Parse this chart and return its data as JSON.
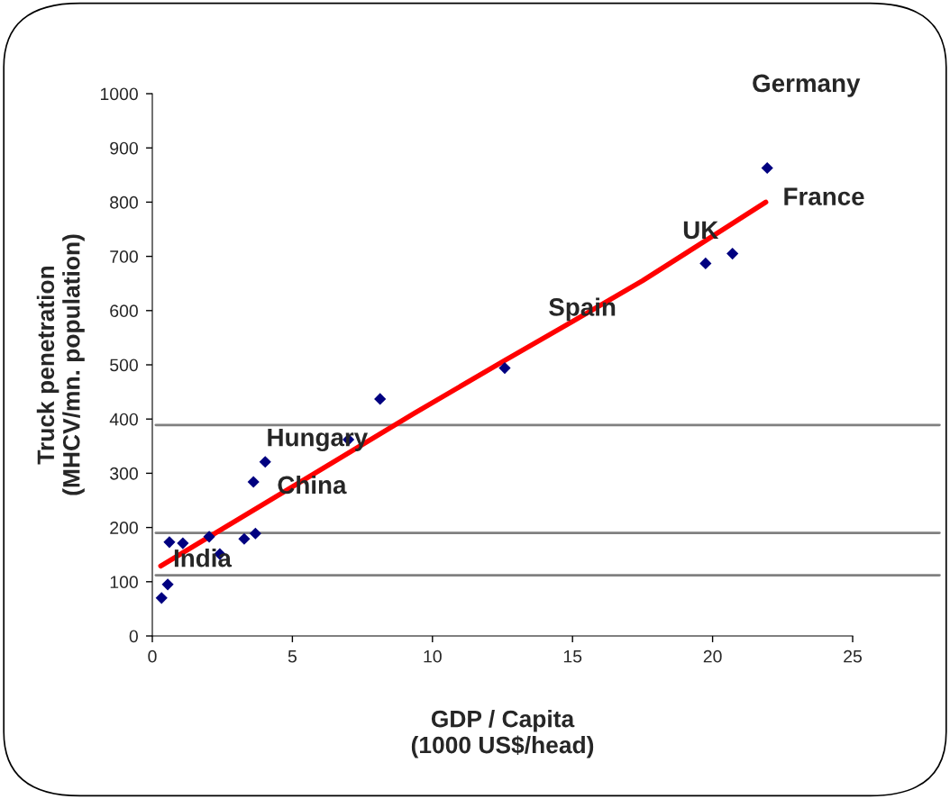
{
  "chart_data": {
    "type": "scatter",
    "xlabel": "GDP / Capita\n(1000 US$/head)",
    "ylabel": "Truck penetration\n(MHCV/mn. population)",
    "xlim": [
      0,
      25
    ],
    "xticks": [
      0,
      5,
      10,
      15,
      20,
      25
    ],
    "ylim": [
      0,
      1000
    ],
    "yticks": [
      0,
      100,
      200,
      300,
      400,
      500,
      600,
      700,
      800,
      900,
      1000
    ],
    "grid": false,
    "legend": false,
    "series": [
      {
        "color": "#000080",
        "marker": "diamond",
        "x": [
          0.33,
          0.55,
          0.61,
          1.09,
          2.03,
          2.41,
          3.28,
          3.68,
          3.61,
          4.03,
          7.0,
          8.13,
          12.58,
          19.75,
          20.71,
          21.95
        ],
        "values": [
          70,
          95,
          173,
          171,
          183,
          151,
          179,
          189,
          284,
          321,
          362,
          437,
          494,
          687,
          705,
          863
        ]
      },
      {
        "type": "line",
        "color": "#ff0000",
        "marker": "none",
        "line_style": "solid",
        "x": [
          0.3,
          5,
          9.36,
          12.58,
          15,
          17.5,
          19.75,
          21.9
        ],
        "values": [
          129,
          275,
          411,
          508,
          580,
          655,
          729,
          800
        ]
      }
    ],
    "ref_lines": [
      {
        "axis": "y",
        "value": 389,
        "color": "#808080"
      },
      {
        "axis": "y",
        "value": 190,
        "color": "#808080"
      },
      {
        "axis": "y",
        "value": 112,
        "color": "#808080"
      }
    ],
    "annotations": [
      {
        "text": "Germany",
        "x": 21.95,
        "y": 863
      },
      {
        "text": "France",
        "x": 20.71,
        "y": 705
      },
      {
        "text": "UK",
        "x": 19.75,
        "y": 687
      },
      {
        "text": "Spain",
        "x": 12.58,
        "y": 494
      },
      {
        "text": "Hungary",
        "x": 7.0,
        "y": 362
      },
      {
        "text": "China",
        "x": 3.68,
        "y": 189
      },
      {
        "text": "India",
        "x": 2.41,
        "y": 151
      }
    ]
  }
}
